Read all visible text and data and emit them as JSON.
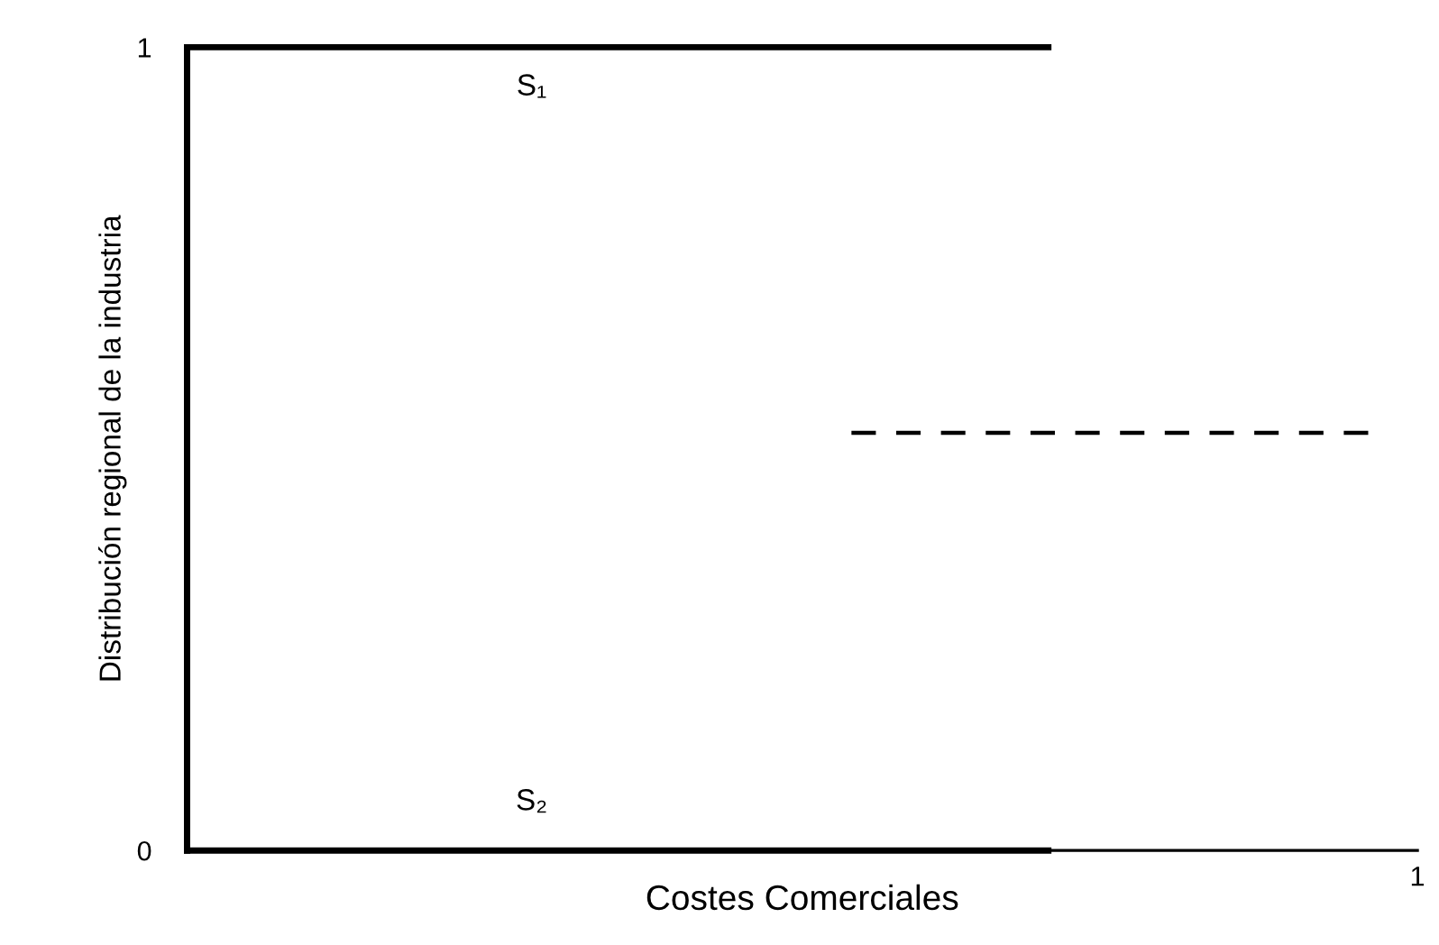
{
  "chart_data": {
    "type": "line",
    "xlabel": "Costes Comerciales",
    "ylabel": "Distribución regional de la industria",
    "categories": [
      null,
      null,
      null,
      null,
      null,
      null,
      null,
      null,
      null,
      null,
      null,
      null,
      null,
      null,
      null,
      null,
      null,
      null,
      null,
      null,
      null,
      null,
      null,
      null,
      null,
      null,
      null,
      null,
      null,
      null,
      null,
      null,
      null,
      null,
      null,
      null,
      null,
      null,
      null,
      null,
      null,
      null,
      null,
      null,
      null,
      null,
      null,
      null,
      null,
      null,
      null
    ],
    "series": [
      {
        "name": "S₁",
        "color": "#000000",
        "values": [
          1,
          1,
          1,
          1,
          1,
          1,
          1,
          1,
          1,
          1,
          1,
          1,
          1,
          1,
          1,
          1,
          1,
          1,
          1,
          1,
          1,
          1,
          1,
          1,
          1,
          1,
          1,
          1,
          1,
          1,
          1,
          1,
          1,
          1,
          1,
          1,
          null,
          null,
          null,
          null,
          null,
          null,
          null,
          null,
          null,
          null,
          null,
          null,
          null,
          null,
          null
        ]
      },
      {
        "name": "S₂",
        "color": "#000000",
        "values": [
          0,
          0,
          0,
          0,
          0,
          0,
          0,
          0,
          0,
          0,
          0,
          0,
          0,
          0,
          0,
          0,
          0,
          0,
          0,
          0,
          0,
          0,
          0,
          0,
          0,
          0,
          0,
          0,
          0,
          0,
          0,
          0,
          0,
          0,
          0,
          0,
          null,
          null,
          null,
          null,
          null,
          null,
          null,
          null,
          null,
          null,
          null,
          null,
          null,
          null,
          null
        ]
      },
      {
        "color": "#000000",
        "line_style": "dashed",
        "values": [
          null,
          null,
          null,
          null,
          null,
          null,
          null,
          null,
          null,
          null,
          null,
          null,
          null,
          null,
          null,
          null,
          null,
          null,
          null,
          null,
          null,
          null,
          null,
          null,
          null,
          null,
          null,
          0.52,
          0.52,
          0.52,
          0.52,
          0.52,
          0.52,
          0.52,
          0.52,
          0.52,
          0.52,
          0.52,
          0.52,
          0.52,
          0.52,
          0.52,
          0.52,
          0.52,
          0.52,
          0.52,
          0.52,
          0.52,
          0.52,
          null,
          null
        ]
      }
    ],
    "annotations": [
      "1"
    ],
    "ylim": [
      0,
      1
    ],
    "yticks": [
      0,
      1
    ],
    "legend": false,
    "marker": "none"
  }
}
